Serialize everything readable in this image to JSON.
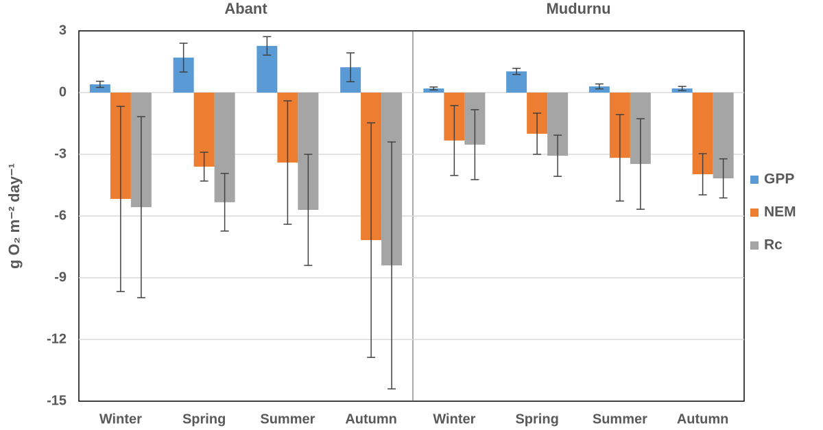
{
  "chart_data": [
    {
      "type": "bar",
      "title": "Abant",
      "ylabel": "g O₂ m⁻² day⁻¹",
      "categories": [
        "Winter",
        "Spring",
        "Summer",
        "Autumn"
      ],
      "series": [
        {
          "name": "GPP",
          "color": "#5b9bd5",
          "values": [
            0.4,
            1.7,
            2.27,
            1.23
          ],
          "errors": [
            0.15,
            0.7,
            0.45,
            0.7
          ]
        },
        {
          "name": "NEM",
          "color": "#ed7d31",
          "values": [
            -5.17,
            -3.6,
            -3.4,
            -7.17
          ],
          "errors": [
            4.5,
            0.7,
            3.0,
            5.7
          ]
        },
        {
          "name": "Rc",
          "color": "#a5a5a5",
          "values": [
            -5.57,
            -5.33,
            -5.7,
            -8.4
          ],
          "errors": [
            4.4,
            1.4,
            2.7,
            6.0
          ]
        }
      ],
      "ylim": [
        -15,
        3
      ],
      "yticks": [
        3,
        0,
        -3,
        -6,
        -9,
        -12,
        -15
      ],
      "grid": true,
      "legend": "right"
    },
    {
      "type": "bar",
      "title": "Mudurnu",
      "categories": [
        "Winter",
        "Spring",
        "Summer",
        "Autumn"
      ],
      "series": [
        {
          "name": "GPP",
          "color": "#5b9bd5",
          "values": [
            0.2,
            1.03,
            0.3,
            0.2
          ],
          "errors": [
            0.07,
            0.15,
            0.12,
            0.1
          ]
        },
        {
          "name": "NEM",
          "color": "#ed7d31",
          "values": [
            -2.33,
            -2.0,
            -3.17,
            -3.97
          ],
          "errors": [
            1.7,
            1.0,
            2.1,
            1.0
          ]
        },
        {
          "name": "Rc",
          "color": "#a5a5a5",
          "values": [
            -2.53,
            -3.07,
            -3.47,
            -4.17
          ],
          "errors": [
            1.7,
            1.0,
            2.2,
            0.95
          ]
        }
      ]
    }
  ]
}
